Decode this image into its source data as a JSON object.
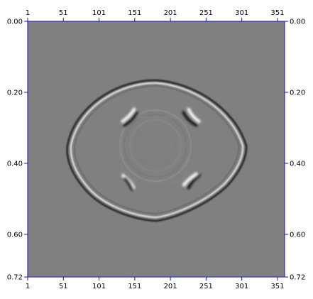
{
  "image": {
    "description_free": true,
    "background_color": "#808080",
    "frame_color": "#1a1aa6"
  },
  "axes": {
    "x_ticks": [
      "1",
      "51",
      "101",
      "151",
      "201",
      "251",
      "301",
      "351"
    ],
    "y_ticks": [
      "0.00",
      "0.20",
      "0.40",
      "0.60",
      "0.72"
    ],
    "x_range": [
      1,
      361
    ],
    "y_range": [
      0.0,
      0.72
    ]
  }
}
